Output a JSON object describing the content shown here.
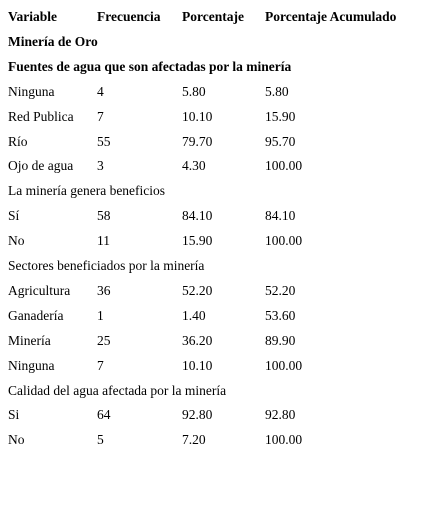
{
  "table": {
    "header": [
      "Variable",
      "Frecuencia",
      "Porcentaje",
      "Porcentaje Acumulado"
    ],
    "group": "Minería de Oro",
    "sections": [
      {
        "title": "Fuentes de agua que son afectadas por la minería",
        "rows": [
          [
            "Ninguna",
            "4",
            "5.80",
            "5.80"
          ],
          [
            "Red Publica",
            "7",
            "10.10",
            "15.90"
          ],
          [
            "Río",
            "55",
            "79.70",
            "95.70"
          ],
          [
            "Ojo de agua",
            "3",
            "4.30",
            "100.00"
          ]
        ]
      },
      {
        "title": "La minería genera beneficios",
        "rows": [
          [
            "Sí",
            "58",
            "84.10",
            "84.10"
          ],
          [
            "No",
            "11",
            "15.90",
            "100.00"
          ]
        ]
      },
      {
        "title": "Sectores beneficiados por la minería",
        "rows": [
          [
            "Agricultura",
            "36",
            "52.20",
            "52.20"
          ],
          [
            "Ganadería",
            "1",
            "1.40",
            "53.60"
          ],
          [
            "Minería",
            "25",
            "36.20",
            "89.90"
          ],
          [
            "Ninguna",
            "7",
            "10.10",
            "100.00"
          ]
        ]
      },
      {
        "title": "Calidad del agua afectada por la minería",
        "rows": [
          [
            "Si",
            "64",
            "92.80",
            "92.80"
          ],
          [
            "No",
            "5",
            "7.20",
            "100.00"
          ]
        ]
      }
    ]
  }
}
